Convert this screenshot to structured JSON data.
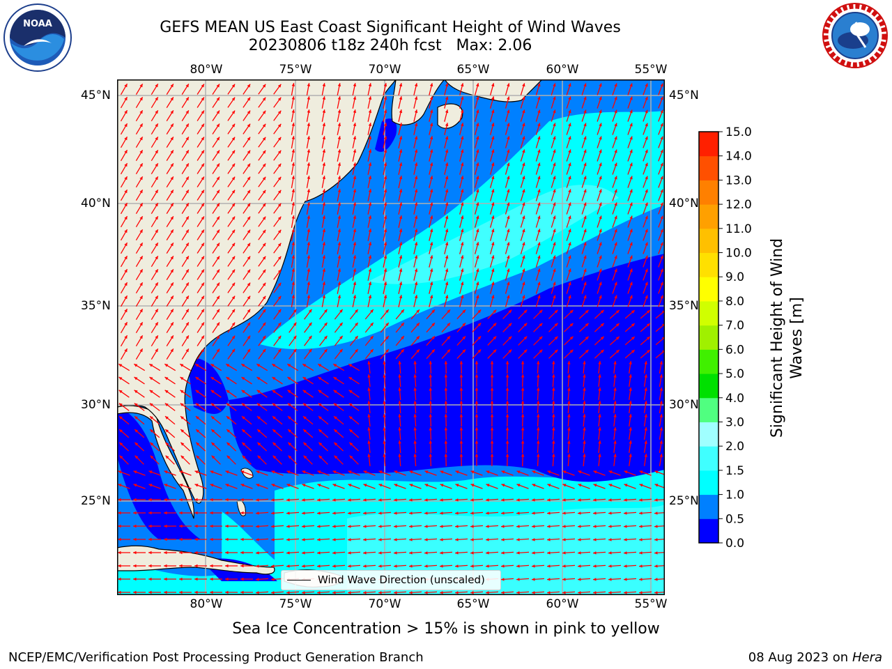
{
  "header": {
    "title_line1": "GEFS MEAN US East Coast Significant Height of Wind Waves",
    "title_line2": "20230806 t18z 240h fcst   Max: 2.06"
  },
  "logos": {
    "left": {
      "text": "NOAA",
      "ring_text": "NATIONAL OCEANIC AND ATMOSPHERIC ADMINISTRATION · U.S. DEPARTMENT OF COMMERCE",
      "icon": "noaa-logo-icon"
    },
    "right": {
      "ring_text": "NATIONAL WEATHER SERVICE",
      "icon": "nws-logo-icon"
    }
  },
  "map": {
    "lon_labels": [
      "80°W",
      "75°W",
      "70°W",
      "65°W",
      "60°W",
      "55°W"
    ],
    "lat_labels": [
      "45°N",
      "40°N",
      "35°N",
      "30°N",
      "25°N"
    ],
    "legend_label": "Wind Wave Direction (unscaled)",
    "colors": {
      "land": "#efedde",
      "arrow": "#ff0000",
      "grid": "#b0b0b0"
    }
  },
  "colorbar": {
    "title_line1": "Significant Height of Wind",
    "title_line2": "Waves [m]",
    "levels": [
      "0.0",
      "0.5",
      "1.0",
      "1.5",
      "2.0",
      "3.0",
      "4.0",
      "5.0",
      "6.0",
      "7.0",
      "8.0",
      "9.0",
      "10.0",
      "11.0",
      "12.0",
      "13.0",
      "14.0",
      "15.0"
    ],
    "colors": [
      "#0000ff",
      "#0080ff",
      "#00ffff",
      "#40ffff",
      "#a0ffff",
      "#50ff80",
      "#00e000",
      "#40f000",
      "#a0f000",
      "#d0ff00",
      "#ffff00",
      "#ffe000",
      "#ffc000",
      "#ffa000",
      "#ff8000",
      "#ff5000",
      "#ff2000"
    ]
  },
  "footer": {
    "note": "Sea Ice Concentration > 15% is shown in pink to yellow",
    "credit": "NCEP/EMC/Verification Post Processing Product Generation Branch",
    "date": "08 Aug 2023 on",
    "host": "Hera"
  }
}
